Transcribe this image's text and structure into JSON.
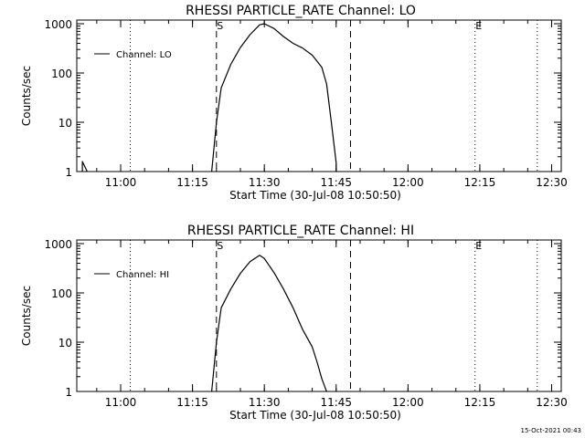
{
  "footer": {
    "timestamp": "15-Oct-2021 00:43"
  },
  "chart_data": [
    {
      "type": "line",
      "title": "RHESSI PARTICLE_RATE Channel: LO",
      "xlabel": "Start Time (30-Jul-08 10:50:50)",
      "ylabel": "Counts/sec",
      "yscale": "log",
      "ylim": [
        1,
        1000
      ],
      "xlim": [
        "10:50:50",
        "12:32:00"
      ],
      "x_ticks": [
        "11:00",
        "11:15",
        "11:30",
        "11:45",
        "12:00",
        "12:15",
        "12:30"
      ],
      "y_ticks": [
        "1",
        "10",
        "100",
        "1000"
      ],
      "legend": {
        "position": "top-left",
        "entries": [
          "Channel: LO"
        ]
      },
      "markers": [
        {
          "label": "S",
          "time": "11:20",
          "style": "dashed"
        },
        {
          "label": "",
          "time": "11:48",
          "style": "dashed"
        },
        {
          "label": "",
          "time": "11:02",
          "style": "dotted"
        },
        {
          "label": "E",
          "time": "12:14",
          "style": "dotted"
        },
        {
          "label": "",
          "time": "12:27",
          "style": "dotted"
        }
      ],
      "series": [
        {
          "name": "Channel: LO",
          "segments": [
            [
              {
                "x": "10:52",
                "y": 1
              },
              {
                "x": "10:52",
                "y": 1.6
              },
              {
                "x": "10:53",
                "y": 1
              }
            ],
            [
              {
                "x": "11:19",
                "y": 1
              },
              {
                "x": "11:20",
                "y": 10
              },
              {
                "x": "11:21",
                "y": 50
              },
              {
                "x": "11:23",
                "y": 150
              },
              {
                "x": "11:25",
                "y": 330
              },
              {
                "x": "11:27",
                "y": 600
              },
              {
                "x": "11:29",
                "y": 950
              },
              {
                "x": "11:30",
                "y": 1000
              },
              {
                "x": "11:32",
                "y": 800
              },
              {
                "x": "11:34",
                "y": 550
              },
              {
                "x": "11:36",
                "y": 400
              },
              {
                "x": "11:38",
                "y": 320
              },
              {
                "x": "11:40",
                "y": 230
              },
              {
                "x": "11:42",
                "y": 130
              },
              {
                "x": "11:43",
                "y": 60
              },
              {
                "x": "11:44",
                "y": 10
              },
              {
                "x": "11:45",
                "y": 1.5
              },
              {
                "x": "11:45",
                "y": 1
              }
            ]
          ]
        }
      ]
    },
    {
      "type": "line",
      "title": "RHESSI PARTICLE_RATE Channel: HI",
      "xlabel": "Start Time (30-Jul-08 10:50:50)",
      "ylabel": "Counts/sec",
      "yscale": "log",
      "ylim": [
        1,
        1000
      ],
      "xlim": [
        "10:50:50",
        "12:32:00"
      ],
      "x_ticks": [
        "11:00",
        "11:15",
        "11:30",
        "11:45",
        "12:00",
        "12:15",
        "12:30"
      ],
      "y_ticks": [
        "1",
        "10",
        "100",
        "1000"
      ],
      "legend": {
        "position": "top-left",
        "entries": [
          "Channel: HI"
        ]
      },
      "markers": [
        {
          "label": "S",
          "time": "11:20",
          "style": "dashed"
        },
        {
          "label": "",
          "time": "11:48",
          "style": "dashed"
        },
        {
          "label": "",
          "time": "11:02",
          "style": "dotted"
        },
        {
          "label": "E",
          "time": "12:14",
          "style": "dotted"
        },
        {
          "label": "",
          "time": "12:27",
          "style": "dotted"
        }
      ],
      "series": [
        {
          "name": "Channel: HI",
          "segments": [
            [
              {
                "x": "11:19",
                "y": 1
              },
              {
                "x": "11:20",
                "y": 10
              },
              {
                "x": "11:21",
                "y": 50
              },
              {
                "x": "11:23",
                "y": 120
              },
              {
                "x": "11:25",
                "y": 250
              },
              {
                "x": "11:27",
                "y": 430
              },
              {
                "x": "11:29",
                "y": 580
              },
              {
                "x": "11:30",
                "y": 500
              },
              {
                "x": "11:32",
                "y": 260
              },
              {
                "x": "11:34",
                "y": 120
              },
              {
                "x": "11:36",
                "y": 50
              },
              {
                "x": "11:38",
                "y": 18
              },
              {
                "x": "11:40",
                "y": 8
              },
              {
                "x": "11:41",
                "y": 4
              },
              {
                "x": "11:42",
                "y": 1.8
              },
              {
                "x": "11:43",
                "y": 1
              }
            ]
          ]
        }
      ]
    }
  ]
}
